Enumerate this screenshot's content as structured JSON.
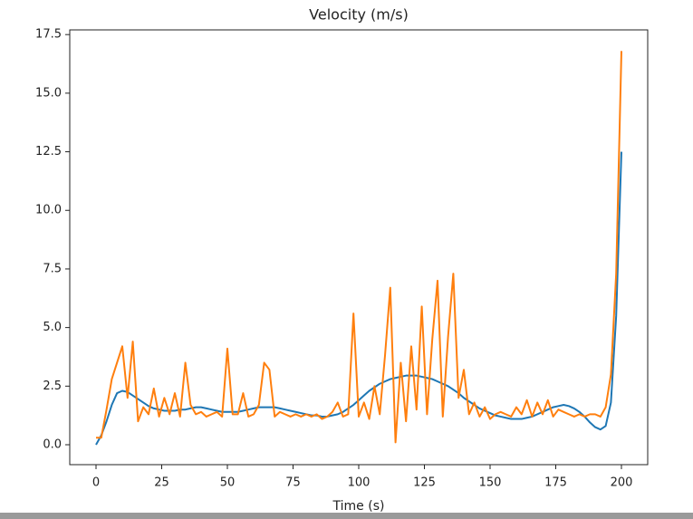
{
  "chart_data": {
    "type": "line",
    "title": "Velocity (m/s)",
    "x_label": "Time (s)",
    "x": [
      0,
      2,
      4,
      6,
      8,
      10,
      12,
      14,
      16,
      18,
      20,
      22,
      24,
      26,
      28,
      30,
      32,
      34,
      36,
      38,
      40,
      42,
      44,
      46,
      48,
      50,
      52,
      54,
      56,
      58,
      60,
      62,
      64,
      66,
      68,
      70,
      72,
      74,
      76,
      78,
      80,
      82,
      84,
      86,
      88,
      90,
      92,
      94,
      96,
      98,
      100,
      102,
      104,
      106,
      108,
      110,
      112,
      114,
      116,
      118,
      120,
      122,
      124,
      126,
      128,
      130,
      132,
      134,
      136,
      138,
      140,
      142,
      144,
      146,
      148,
      150,
      152,
      154,
      156,
      158,
      160,
      162,
      164,
      166,
      168,
      170,
      172,
      174,
      176,
      178,
      180,
      182,
      184,
      186,
      188,
      190,
      192,
      194,
      196,
      198,
      200
    ],
    "series": [
      {
        "color": "#1f77b4",
        "values": [
          0.0,
          0.4,
          1.0,
          1.7,
          2.2,
          2.3,
          2.25,
          2.1,
          1.95,
          1.8,
          1.65,
          1.55,
          1.5,
          1.45,
          1.45,
          1.45,
          1.5,
          1.5,
          1.55,
          1.6,
          1.6,
          1.55,
          1.5,
          1.45,
          1.4,
          1.4,
          1.4,
          1.4,
          1.45,
          1.5,
          1.55,
          1.6,
          1.6,
          1.6,
          1.6,
          1.55,
          1.5,
          1.45,
          1.4,
          1.35,
          1.3,
          1.25,
          1.25,
          1.2,
          1.2,
          1.25,
          1.3,
          1.4,
          1.55,
          1.7,
          1.9,
          2.1,
          2.3,
          2.45,
          2.6,
          2.7,
          2.8,
          2.85,
          2.9,
          2.95,
          2.95,
          2.95,
          2.9,
          2.85,
          2.8,
          2.7,
          2.6,
          2.5,
          2.35,
          2.2,
          2.0,
          1.85,
          1.7,
          1.55,
          1.45,
          1.35,
          1.25,
          1.2,
          1.15,
          1.1,
          1.1,
          1.1,
          1.15,
          1.2,
          1.3,
          1.4,
          1.5,
          1.6,
          1.65,
          1.7,
          1.65,
          1.55,
          1.4,
          1.2,
          0.95,
          0.75,
          0.65,
          0.8,
          1.8,
          5.5,
          12.5
        ]
      },
      {
        "color": "#ff7f0e",
        "values": [
          0.3,
          0.3,
          1.5,
          2.8,
          3.5,
          4.2,
          2.0,
          4.4,
          1.0,
          1.6,
          1.3,
          2.4,
          1.2,
          2.0,
          1.3,
          2.2,
          1.2,
          3.5,
          1.7,
          1.3,
          1.4,
          1.2,
          1.3,
          1.4,
          1.2,
          4.1,
          1.3,
          1.3,
          2.2,
          1.2,
          1.3,
          1.7,
          3.5,
          3.2,
          1.2,
          1.4,
          1.3,
          1.2,
          1.3,
          1.2,
          1.3,
          1.2,
          1.3,
          1.1,
          1.2,
          1.4,
          1.8,
          1.2,
          1.3,
          5.6,
          1.2,
          1.8,
          1.1,
          2.5,
          1.3,
          3.8,
          6.7,
          0.1,
          3.5,
          1.0,
          4.2,
          1.5,
          5.9,
          1.3,
          4.5,
          7.0,
          1.2,
          4.6,
          7.3,
          2.0,
          3.2,
          1.3,
          1.8,
          1.2,
          1.6,
          1.1,
          1.3,
          1.4,
          1.3,
          1.2,
          1.6,
          1.3,
          1.9,
          1.2,
          1.8,
          1.3,
          1.9,
          1.2,
          1.5,
          1.4,
          1.3,
          1.2,
          1.3,
          1.2,
          1.3,
          1.3,
          1.2,
          1.6,
          3.0,
          7.3,
          16.8
        ]
      }
    ],
    "xlim": [
      -10,
      210
    ],
    "ylim": [
      -0.85,
      17.7
    ],
    "xticks": [
      0,
      25,
      50,
      75,
      100,
      125,
      150,
      175,
      200
    ],
    "yticks": [
      {
        "value": 0,
        "label": "0.0"
      },
      2.5,
      {
        "value": 5,
        "label": "5.0"
      },
      7.5,
      {
        "value": 10,
        "label": "10.0"
      },
      12.5,
      {
        "value": 15,
        "label": "15.0"
      },
      17.5
    ]
  }
}
